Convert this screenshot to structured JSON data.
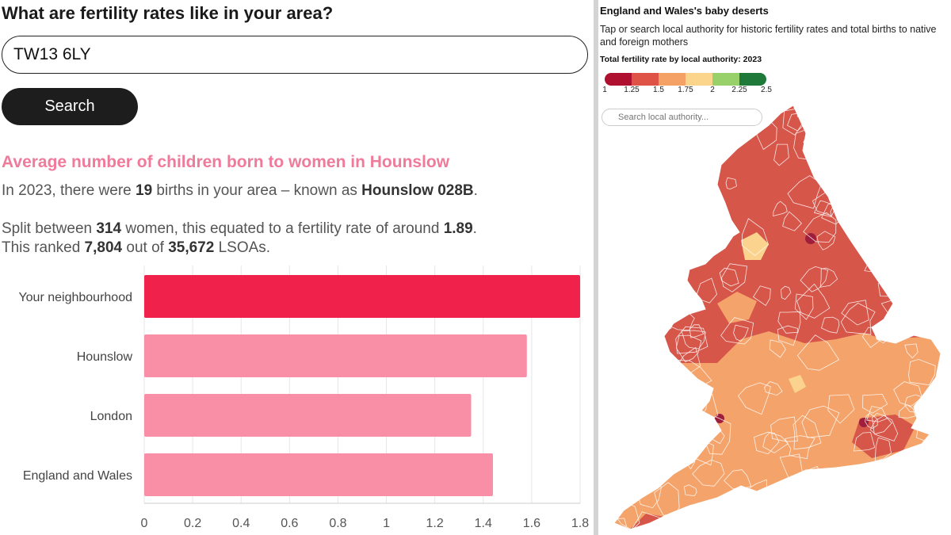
{
  "heading": "What are fertility rates like in your area?",
  "postcode_input": {
    "value": "TW13 6LY"
  },
  "search_button": "Search",
  "result": {
    "subheading": "Average number of children born to women in Hounslow",
    "p1": {
      "t1": "In 2023, there were ",
      "births": "19",
      "t2": " births in your area – known as ",
      "lsoa": "Hounslow 028B",
      "t3": "."
    },
    "p2": {
      "t1": "Split between ",
      "women": "314",
      "t2": " women, this equated to a fertility rate of around ",
      "rate": "1.89",
      "t3": ".",
      "t4": "This ranked ",
      "rank": "7,804",
      "t5": " out of ",
      "total": "35,672",
      "t6": " LSOAs."
    }
  },
  "chart_data": {
    "type": "bar",
    "orientation": "horizontal",
    "categories": [
      "Your neighbourhood",
      "Hounslow",
      "London",
      "England and Wales"
    ],
    "values": [
      1.89,
      1.58,
      1.35,
      1.44
    ],
    "xlim": [
      0,
      1.8
    ],
    "xticks": [
      "0",
      "0.2",
      "0.4",
      "0.6",
      "0.8",
      "1",
      "1.2",
      "1.4",
      "1.6",
      "1.8"
    ],
    "colors": [
      "#f0224c",
      "#f98ea7",
      "#f98ea7",
      "#f98ea7"
    ],
    "grid": true
  },
  "map": {
    "title": "England and Wales's baby deserts",
    "description": "Tap or search local authority for historic fertility rates and total births to native and foreign mothers",
    "legend_title": "Total fertility rate by local authority: 2023",
    "legend_colors": [
      "#b0102f",
      "#df5346",
      "#f5a165",
      "#fcd58d",
      "#98d16a",
      "#1f7a3a"
    ],
    "legend_ticks": [
      "1",
      "1.25",
      "1.5",
      "1.75",
      "2",
      "2.25",
      "2.5"
    ],
    "search_placeholder": "Search local authority...",
    "fill_colors": {
      "dark": "#d7564a",
      "light": "#f4a46b",
      "pale": "#fbd38e",
      "deep": "#9e1e3c",
      "border": "#ffffff"
    }
  }
}
